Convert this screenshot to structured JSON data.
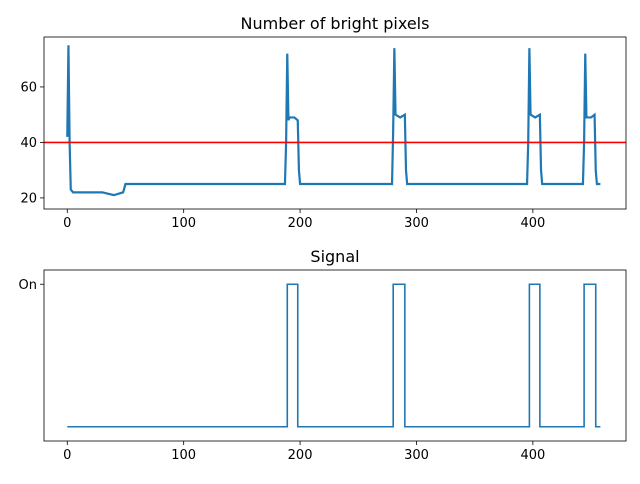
{
  "chart_data": [
    {
      "type": "line",
      "title": "Number of bright pixels",
      "xlabel": "",
      "ylabel": "",
      "xlim": [
        -20,
        480
      ],
      "ylim": [
        16,
        78
      ],
      "xticks": [
        0,
        100,
        200,
        300,
        400
      ],
      "yticks": [
        20,
        40,
        60
      ],
      "grid": false,
      "legend": "none",
      "line_color": "#1f77b4",
      "threshold": {
        "y": 40,
        "color": "#ff0000"
      },
      "series": [
        {
          "x": [
            0,
            1,
            2,
            3,
            5,
            10,
            20,
            30,
            40,
            48,
            50,
            60,
            80,
            100,
            120,
            140,
            160,
            180,
            187,
            188,
            189,
            190,
            191,
            195,
            198,
            199,
            200,
            220,
            240,
            260,
            279,
            280,
            281,
            282,
            286,
            290,
            291,
            292,
            300,
            320,
            340,
            360,
            380,
            395,
            396,
            397,
            398,
            402,
            406,
            407,
            408,
            420,
            440,
            443,
            444,
            445,
            446,
            450,
            453,
            454,
            455,
            458
          ],
          "y": [
            42,
            75,
            40,
            23,
            22,
            22,
            22,
            22,
            21,
            22,
            25,
            25,
            25,
            25,
            25,
            25,
            25,
            25,
            25,
            40,
            72,
            48,
            49,
            49,
            48,
            30,
            25,
            25,
            25,
            25,
            25,
            45,
            74,
            50,
            49,
            50,
            30,
            25,
            25,
            25,
            25,
            25,
            25,
            25,
            40,
            74,
            50,
            49,
            50,
            30,
            25,
            25,
            25,
            25,
            40,
            72,
            49,
            49,
            50,
            30,
            25,
            25
          ]
        }
      ]
    },
    {
      "type": "line",
      "title": "Signal",
      "xlabel": "",
      "ylabel": "",
      "xlim": [
        -20,
        480
      ],
      "ylim": [
        -0.1,
        1.1
      ],
      "xticks": [
        0,
        100,
        200,
        300,
        400
      ],
      "yticks": [
        1
      ],
      "yticklabels": [
        "On"
      ],
      "grid": false,
      "legend": "none",
      "line_color": "#1f77b4",
      "series": [
        {
          "x": [
            0,
            189,
            189,
            198,
            198,
            280,
            280,
            290,
            290,
            397,
            397,
            406,
            406,
            444,
            444,
            454,
            454,
            458
          ],
          "y": [
            0,
            0,
            1,
            1,
            0,
            0,
            1,
            1,
            0,
            0,
            1,
            1,
            0,
            0,
            1,
            1,
            0,
            0
          ]
        }
      ]
    }
  ]
}
